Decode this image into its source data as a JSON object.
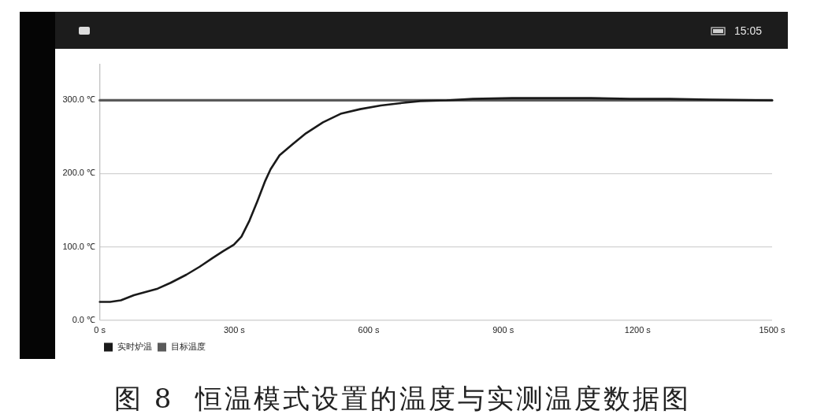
{
  "chart_data": {
    "type": "line",
    "x": [
      0,
      23,
      47,
      76,
      100,
      129,
      158,
      193,
      223,
      252,
      275,
      299,
      316,
      334,
      352,
      369,
      381,
      401,
      430,
      460,
      498,
      539,
      581,
      627,
      668,
      715,
      774,
      832,
      920,
      1008,
      1096,
      1184,
      1272,
      1360,
      1500
    ],
    "series": [
      {
        "name": "实时炉温",
        "color": "#1a1a1a",
        "values": [
          25,
          25,
          27,
          34,
          38,
          43,
          51,
          62,
          73,
          85,
          94,
          103,
          114,
          136,
          163,
          190,
          206,
          225,
          240,
          255,
          270,
          282,
          288,
          293,
          296,
          299,
          300,
          302,
          303,
          303,
          303,
          302,
          302,
          301,
          300
        ]
      },
      {
        "name": "目标温度",
        "color": "#5a5a5a",
        "x": [
          0,
          1500
        ],
        "values": [
          300,
          300
        ]
      }
    ],
    "xlim": [
      0,
      1500
    ],
    "ylim": [
      0,
      350
    ],
    "xticks": [
      {
        "value": 0,
        "label": "0 s"
      },
      {
        "value": 300,
        "label": "300 s"
      },
      {
        "value": 600,
        "label": "600 s"
      },
      {
        "value": 900,
        "label": "900 s"
      },
      {
        "value": 1200,
        "label": "1200 s"
      },
      {
        "value": 1500,
        "label": "1500 s"
      }
    ],
    "yticks": [
      {
        "value": 0,
        "label": "0.0 ℃"
      },
      {
        "value": 100,
        "label": "100.0 ℃"
      },
      {
        "value": 200,
        "label": "200.0 ℃"
      },
      {
        "value": 300,
        "label": "300.0 ℃"
      }
    ],
    "grid": "y",
    "legend": "bottom left",
    "marker": "none",
    "line_style": "solid",
    "annotations": [
      "15:05",
      "图 8  恒温模式设置的温度与实测温度数据图"
    ]
  }
}
